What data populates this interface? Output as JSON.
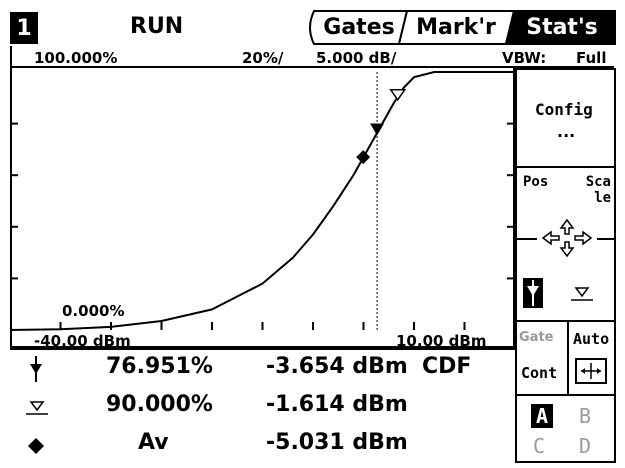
{
  "header": {
    "channel": "1",
    "mode": "RUN",
    "tabs": [
      {
        "label": "Gates",
        "active": false
      },
      {
        "label": "Mark'r",
        "active": false
      },
      {
        "label": "Stat's",
        "active": true
      }
    ]
  },
  "info_row": {
    "ref_percent": "100.000%",
    "percent_per_div": "20%/",
    "db_per_div": "5.000 dB/",
    "vbw_label": "VBW:",
    "vbw_value": "Full"
  },
  "plot": {
    "top_left_label": "",
    "bottom_left_label": "0.000%",
    "x_start_label": "-40.00 dBm",
    "x_end_label": "10.00 dBm"
  },
  "chart_data": {
    "type": "line",
    "xlim": [
      -40,
      10
    ],
    "ylim": [
      0,
      100
    ],
    "series": [
      {
        "x": [
          -40,
          -35,
          -30,
          -25,
          -20,
          -15,
          -12,
          -10,
          -8,
          -6,
          -5,
          -4,
          -3,
          -2,
          -1,
          0,
          2,
          5,
          10
        ],
        "y": [
          0,
          0.3,
          1.2,
          3.5,
          8,
          18,
          28,
          37,
          48,
          60,
          67,
          74,
          81,
          88,
          94,
          98,
          100,
          100,
          100
        ]
      }
    ],
    "markers": [
      {
        "name": "marker1",
        "x": -3.654,
        "y": 76.951
      },
      {
        "name": "marker2",
        "x": -1.614,
        "y": 90.0
      },
      {
        "name": "average",
        "x": -5.031,
        "y": 67
      }
    ]
  },
  "right_panel": {
    "config_label": "Config",
    "config_sub": "...",
    "pos_label": "Pos",
    "scale_label": "Sca le",
    "gate_label": "Gate",
    "auto_label": "Auto",
    "cont_label": "Cont",
    "a_label": "A",
    "b_label": "B",
    "c_label": "C",
    "d_label": "D"
  },
  "readings": {
    "rows": [
      {
        "percent": "76.951%",
        "dbm": "-3.654 dBm",
        "extra": "CDF"
      },
      {
        "percent": "90.000%",
        "dbm": "-1.614 dBm",
        "extra": ""
      },
      {
        "percent": "Av",
        "dbm": "-5.031 dBm",
        "extra": ""
      }
    ]
  }
}
